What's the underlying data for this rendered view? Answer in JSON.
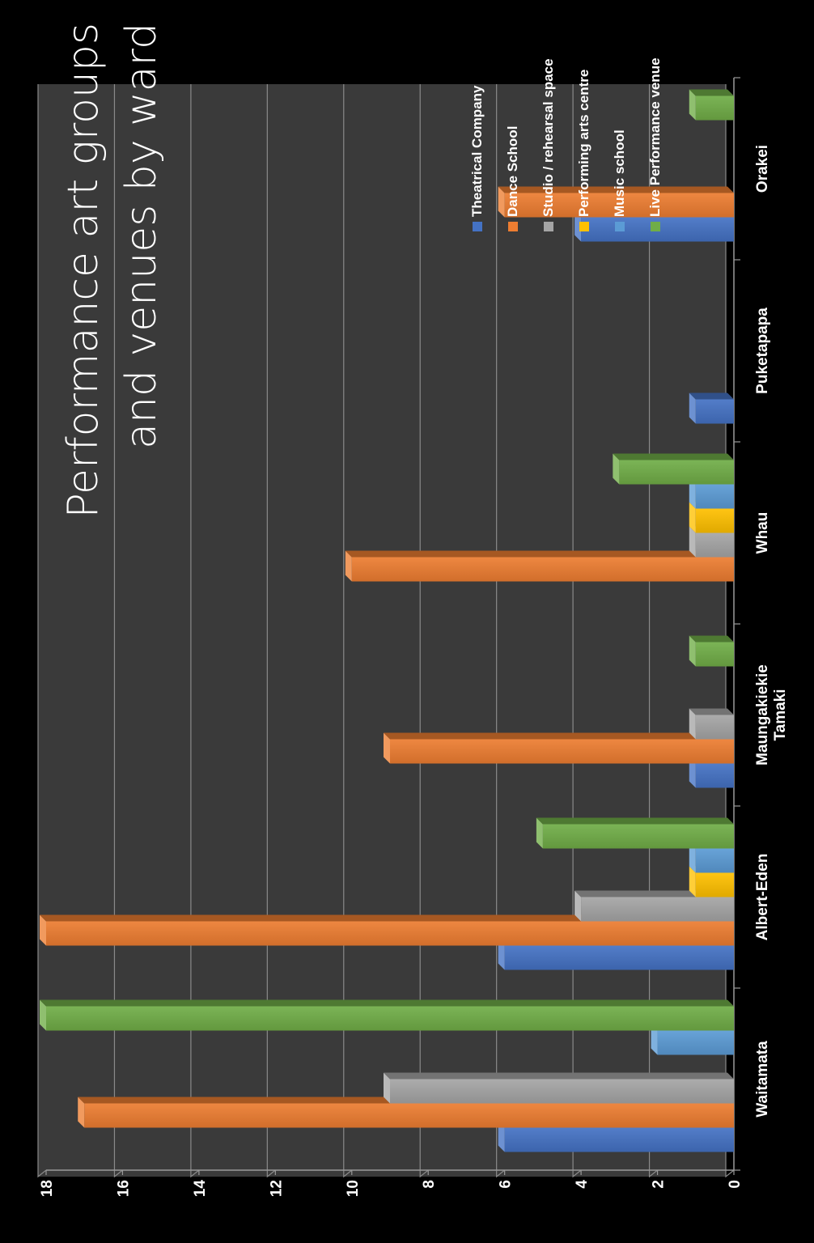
{
  "chart_data": {
    "type": "bar",
    "title": [
      "Performance art groups",
      "and venues by ward"
    ],
    "categories": [
      "Waitamata",
      "Albert-Eden",
      [
        "Maungakiekie",
        "Tamaki"
      ],
      "Whau",
      "Puketapapa",
      "Orakei"
    ],
    "ylim": [
      0,
      18
    ],
    "yticks": [
      0,
      2,
      4,
      6,
      8,
      10,
      12,
      14,
      16,
      18
    ],
    "grid": true,
    "legend_position": "right",
    "series": [
      {
        "name": "Theatrical Company",
        "color": "#4472c4",
        "values": [
          6,
          6,
          1,
          0,
          1,
          4
        ]
      },
      {
        "name": "Dance School",
        "color": "#ed7d31",
        "values": [
          17,
          18,
          9,
          10,
          0,
          6
        ]
      },
      {
        "name": "Studio / rehearsal space",
        "color": "#a5a5a5",
        "values": [
          9,
          4,
          1,
          1,
          0,
          0
        ]
      },
      {
        "name": "Performing arts centre",
        "color": "#ffc000",
        "values": [
          0,
          1,
          0,
          1,
          0,
          0
        ]
      },
      {
        "name": "Music school",
        "color": "#5b9bd5",
        "values": [
          2,
          1,
          0,
          1,
          0,
          0
        ]
      },
      {
        "name": "Live Performance venue",
        "color": "#70ad47",
        "values": [
          18,
          5,
          1,
          3,
          0,
          1
        ]
      }
    ]
  }
}
